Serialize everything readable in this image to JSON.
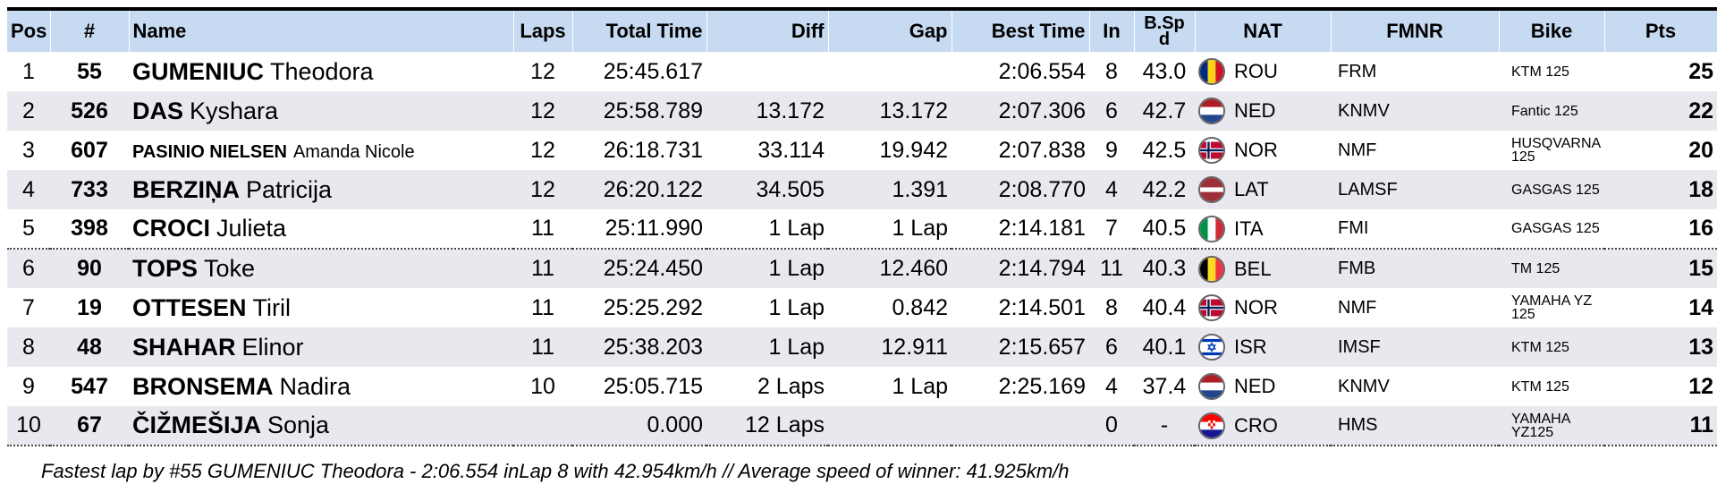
{
  "headers": {
    "pos": "Pos",
    "num": "#",
    "name": "Name",
    "laps": "Laps",
    "total_time": "Total Time",
    "diff": "Diff",
    "gap": "Gap",
    "best_time": "Best Time",
    "in": "In",
    "bspd": "B.Sp d",
    "nat": "NAT",
    "fmnr": "FMNR",
    "bike": "Bike",
    "pts": "Pts"
  },
  "rows": [
    {
      "pos": "1",
      "num": "55",
      "last": "GUMENIUC",
      "first": "Theodora",
      "laps": "12",
      "total": "25:45.617",
      "diff": "",
      "gap": "",
      "best": "2:06.554",
      "in": "8",
      "bspd": "43.0",
      "nat": "ROU",
      "flag": "rou-flag-icon",
      "fmnr": "FRM",
      "bike": "KTM 125",
      "pts": "25"
    },
    {
      "pos": "2",
      "num": "526",
      "last": "DAS",
      "first": "Kyshara",
      "laps": "12",
      "total": "25:58.789",
      "diff": "13.172",
      "gap": "13.172",
      "best": "2:07.306",
      "in": "6",
      "bspd": "42.7",
      "nat": "NED",
      "flag": "ned-flag-icon",
      "fmnr": "KNMV",
      "bike": "Fantic 125",
      "pts": "22"
    },
    {
      "pos": "3",
      "num": "607",
      "last": "PASINIO NIELSEN",
      "first": "Amanda Nicole",
      "laps": "12",
      "total": "26:18.731",
      "diff": "33.114",
      "gap": "19.942",
      "best": "2:07.838",
      "in": "9",
      "bspd": "42.5",
      "nat": "NOR",
      "flag": "nor-flag-icon",
      "fmnr": "NMF",
      "bike": "HUSQVARNA 125",
      "pts": "20"
    },
    {
      "pos": "4",
      "num": "733",
      "last": "BERZIŅA",
      "first": "Patricija",
      "laps": "12",
      "total": "26:20.122",
      "diff": "34.505",
      "gap": "1.391",
      "best": "2:08.770",
      "in": "4",
      "bspd": "42.2",
      "nat": "LAT",
      "flag": "lat-flag-icon",
      "fmnr": "LAMSF",
      "bike": "GASGAS 125",
      "pts": "18"
    },
    {
      "pos": "5",
      "num": "398",
      "last": "CROCI",
      "first": "Julieta",
      "laps": "11",
      "total": "25:11.990",
      "diff": "1 Lap",
      "gap": "1 Lap",
      "best": "2:14.181",
      "in": "7",
      "bspd": "40.5",
      "nat": "ITA",
      "flag": "ita-flag-icon",
      "fmnr": "FMI",
      "bike": "GASGAS 125",
      "pts": "16"
    },
    {
      "pos": "6",
      "num": "90",
      "last": "TOPS",
      "first": "Toke",
      "laps": "11",
      "total": "25:24.450",
      "diff": "1 Lap",
      "gap": "12.460",
      "best": "2:14.794",
      "in": "11",
      "bspd": "40.3",
      "nat": "BEL",
      "flag": "bel-flag-icon",
      "fmnr": "FMB",
      "bike": "TM 125",
      "pts": "15"
    },
    {
      "pos": "7",
      "num": "19",
      "last": "OTTESEN",
      "first": "Tiril",
      "laps": "11",
      "total": "25:25.292",
      "diff": "1 Lap",
      "gap": "0.842",
      "best": "2:14.501",
      "in": "8",
      "bspd": "40.4",
      "nat": "NOR",
      "flag": "nor-flag-icon",
      "fmnr": "NMF",
      "bike": "YAMAHA YZ 125",
      "pts": "14"
    },
    {
      "pos": "8",
      "num": "48",
      "last": "SHAHAR",
      "first": "Elinor",
      "laps": "11",
      "total": "25:38.203",
      "diff": "1 Lap",
      "gap": "12.911",
      "best": "2:15.657",
      "in": "6",
      "bspd": "40.1",
      "nat": "ISR",
      "flag": "isr-flag-icon",
      "fmnr": "IMSF",
      "bike": "KTM 125",
      "pts": "13"
    },
    {
      "pos": "9",
      "num": "547",
      "last": "BRONSEMA",
      "first": "Nadira",
      "laps": "10",
      "total": "25:05.715",
      "diff": "2 Laps",
      "gap": "1 Lap",
      "best": "2:25.169",
      "in": "4",
      "bspd": "37.4",
      "nat": "NED",
      "flag": "ned-flag-icon",
      "fmnr": "KNMV",
      "bike": "KTM 125",
      "pts": "12"
    },
    {
      "pos": "10",
      "num": "67",
      "last": "ČIŽMEŠIJA",
      "first": "Sonja",
      "laps": "",
      "total": "0.000",
      "diff": "12 Laps",
      "gap": "",
      "best": "",
      "in": "0",
      "bspd": "-",
      "nat": "CRO",
      "flag": "cro-flag-icon",
      "fmnr": "HMS",
      "bike": "YAMAHA YZ125",
      "pts": "11"
    }
  ],
  "footer_note": "Fastest lap by #55 GUMENIUC Theodora - 2:06.554 inLap 8 with 42.954km/h // Average speed of winner: 41.925km/h"
}
